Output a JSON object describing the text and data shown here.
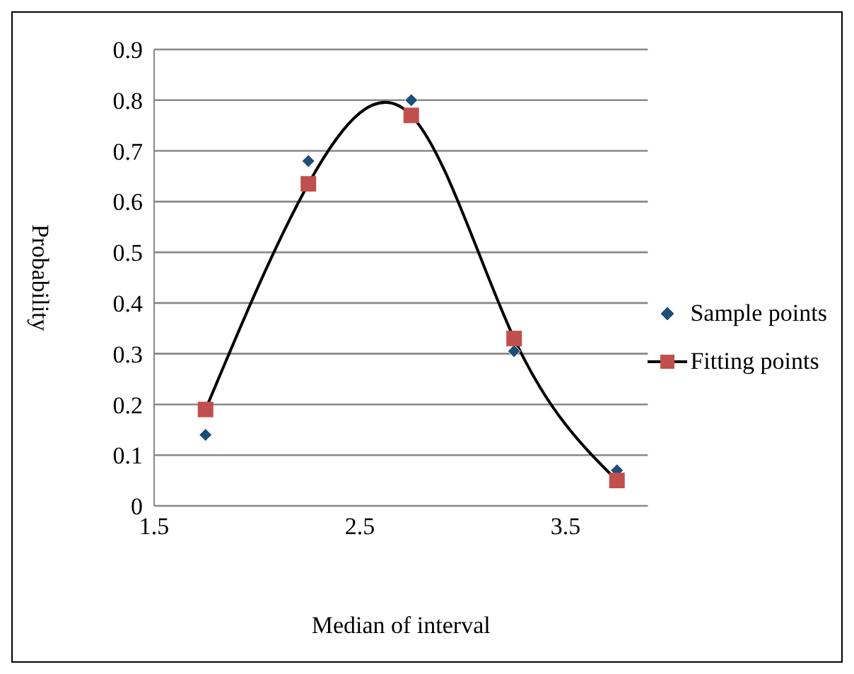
{
  "chart_data": {
    "type": "scatter",
    "xlabel": "Median of interval",
    "ylabel": "Probability",
    "x": [
      1.75,
      2.25,
      2.75,
      3.25,
      3.75
    ],
    "series": [
      {
        "name": "Sample points",
        "marker": "diamond",
        "color": "#1f4e79",
        "values": [
          0.14,
          0.68,
          0.8,
          0.305,
          0.07
        ]
      },
      {
        "name": "Fitting points",
        "type": "line",
        "marker": "square",
        "color": "#c0504d",
        "values": [
          0.19,
          0.635,
          0.77,
          0.33,
          0.05
        ]
      }
    ],
    "xlim": [
      1.5,
      3.9
    ],
    "xticks": [
      1.5,
      2.5,
      3.5
    ],
    "ylim": [
      0,
      0.9
    ],
    "yticks": [
      0,
      0.1,
      0.2,
      0.3,
      0.4,
      0.5,
      0.6,
      0.7,
      0.8,
      0.9
    ],
    "grid": "y",
    "legend": "right"
  }
}
